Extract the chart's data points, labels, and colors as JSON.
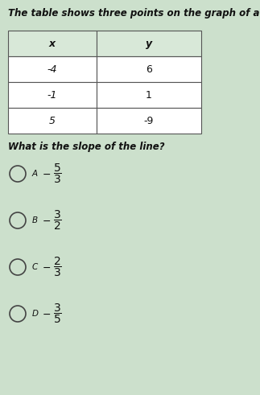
{
  "title": "The table shows three points on the graph of a line.",
  "table_headers": [
    "x",
    "y"
  ],
  "table_rows": [
    [
      "-4",
      "6"
    ],
    [
      "-1",
      "1"
    ],
    [
      "5",
      "-9"
    ]
  ],
  "question": "What is the slope of the line?",
  "options": [
    {
      "label": "A",
      "num": "5",
      "den": "3"
    },
    {
      "label": "B",
      "num": "3",
      "den": "2"
    },
    {
      "label": "C",
      "num": "2",
      "den": "3"
    },
    {
      "label": "D",
      "num": "3",
      "den": "5"
    }
  ],
  "bg_color": "#cce0cc",
  "table_bg": "#ffffff",
  "table_header_bg": "#d8e8d8",
  "table_border": "#555555",
  "text_color": "#111111",
  "title_fontsize": 8.5,
  "question_fontsize": 8.5,
  "cell_fontsize": 9.0,
  "option_fontsize": 9.0
}
